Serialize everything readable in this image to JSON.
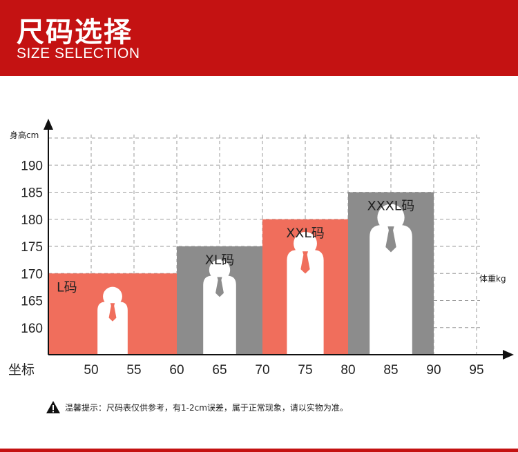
{
  "header": {
    "title_cn": "尺码选择",
    "title_en": "SIZE SELECTION"
  },
  "colors": {
    "brand_red": "#c41212",
    "size_red": "#f06e5c",
    "size_gray": "#8c8c8c",
    "figure": "#ffffff"
  },
  "chart_data": {
    "type": "bar",
    "ylabel": "身高cm",
    "xlabel": "体重kg",
    "x_axis_start_label": "坐标",
    "x_ticks": [
      50,
      55,
      60,
      65,
      70,
      75,
      80,
      85,
      90,
      95
    ],
    "y_ticks": [
      160,
      165,
      170,
      175,
      180,
      185,
      190
    ],
    "xlim": [
      45,
      95
    ],
    "ylim": [
      155,
      190
    ],
    "grid": true,
    "sizes": [
      {
        "label": "L码",
        "weight_range": [
          45,
          60
        ],
        "height_max": 170,
        "color": "#f06e5c"
      },
      {
        "label": "XL码",
        "weight_range": [
          60,
          70
        ],
        "height_max": 175,
        "color": "#8c8c8c"
      },
      {
        "label": "XXL码",
        "weight_range": [
          70,
          80
        ],
        "height_max": 180,
        "color": "#f06e5c"
      },
      {
        "label": "XXXL码",
        "weight_range": [
          80,
          90
        ],
        "height_max": 185,
        "color": "#8c8c8c"
      }
    ]
  },
  "footer": {
    "warning_icon": "warning-triangle-icon",
    "note": "温馨提示：尺码表仅供参考，有1-2cm误差，属于正常现象，请以实物为准。"
  }
}
